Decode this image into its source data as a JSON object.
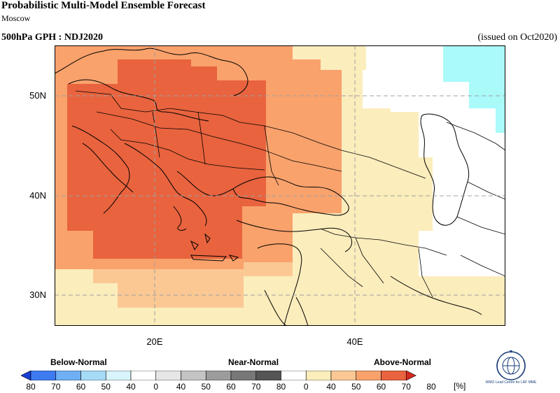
{
  "header": {
    "title": "Probabilistic Multi-Model Ensemble Forecast",
    "subtitle": "Moscow",
    "variable": "500hPa GPH : NDJ2020",
    "issued": "(issued on Oct2020)"
  },
  "map": {
    "lat_labels": [
      "50N",
      "40N",
      "30N"
    ],
    "lon_labels": [
      "20E",
      "40E"
    ],
    "category_colors": {
      "above_70_80": "#e8633e",
      "above_60_70": "#f9a26c",
      "above_50_60": "#fbc894",
      "above_40_50": "#fbedbc",
      "below_50_60": "#aafafa",
      "no_signal": "#ffffff"
    }
  },
  "legend": {
    "below_label": "Below-Normal",
    "near_label": "Near-Normal",
    "above_label": "Above-Normal",
    "ticks": [
      "80",
      "70",
      "60",
      "50",
      "40",
      "0",
      "40",
      "50",
      "60",
      "70",
      "80",
      "0",
      "40",
      "50",
      "60",
      "70",
      "80"
    ],
    "unit": "[%]",
    "colors": [
      "#1a3fd6",
      "#3f7bf0",
      "#6fb0f5",
      "#a6dbf8",
      "#d9f4fb",
      "#ffffff",
      "#e6e6e6",
      "#c4c4c4",
      "#9c9c9c",
      "#787878",
      "#555555",
      "#ffffff",
      "#fbedbc",
      "#fbc894",
      "#f9a26c",
      "#e8633e",
      "#d42a1f"
    ]
  },
  "logo": {
    "text": "WMO Lead Centre for LRF MME"
  }
}
